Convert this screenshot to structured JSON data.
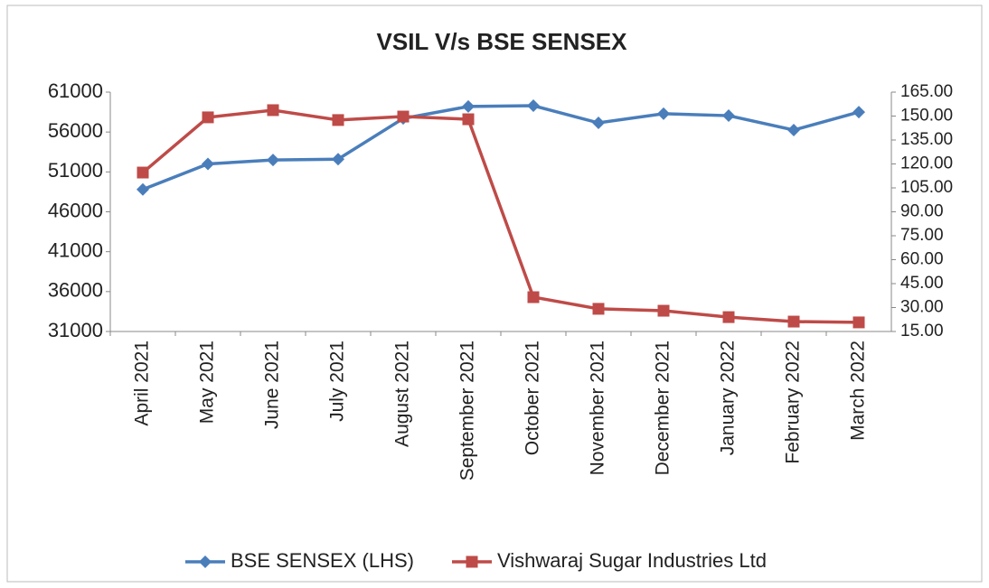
{
  "chart_data": {
    "type": "line",
    "title": "VSIL V/s BSE SENSEX",
    "categories": [
      "April 2021",
      "May 2021",
      "June 2021",
      "July 2021",
      "August 2021",
      "September 2021",
      "October 2021",
      "November 2021",
      "December 2021",
      "January 2022",
      "February 2022",
      "March 2022"
    ],
    "series": [
      {
        "name": "BSE SENSEX (LHS)",
        "color": "#4a7ebb",
        "marker": "diamond",
        "values": [
          48800,
          52000,
          52500,
          52600,
          57700,
          59200,
          59300,
          57150,
          58300,
          58050,
          56250,
          58500
        ]
      },
      {
        "name": "Vishwaraj Sugar Industries Ltd",
        "color": "#be4b48",
        "marker": "square",
        "axis": "y2",
        "values": [
          114.6,
          149.2,
          153.7,
          147.5,
          149.7,
          148,
          36.5,
          29.2,
          28,
          24,
          21.2,
          20.7
        ]
      }
    ],
    "ylim": [
      31000,
      61000
    ],
    "yticks": [
      31000,
      36000,
      41000,
      46000,
      51000,
      56000,
      61000
    ],
    "y2lim": [
      15,
      165
    ],
    "y2ticks": [
      {
        "value": 15,
        "label": "15.00"
      },
      {
        "value": 30,
        "label": "30.00"
      },
      {
        "value": 45,
        "label": "45.00"
      },
      {
        "value": 60,
        "label": "60.00"
      },
      {
        "value": 75,
        "label": "75.00"
      },
      {
        "value": 90,
        "label": "90.00"
      },
      {
        "value": 105,
        "label": "105.00"
      },
      {
        "value": 120,
        "label": "120.00"
      },
      {
        "value": 135,
        "label": "135.00"
      },
      {
        "value": 150,
        "label": "150.00"
      },
      {
        "value": 165,
        "label": "165.00"
      }
    ],
    "legend": "bottom"
  }
}
